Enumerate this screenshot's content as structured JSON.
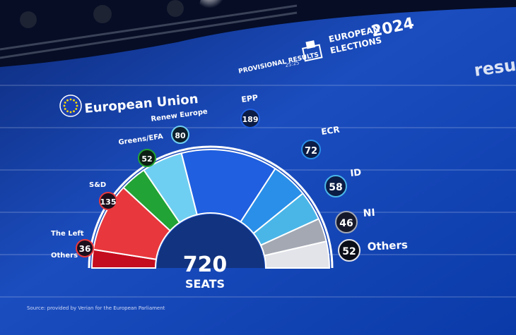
{
  "header": {
    "provisional_label": "PROVISIONAL RESULTS",
    "timestamp": "25:25",
    "election_title_line1": "EUROPEAN",
    "election_title_line2": "ELECTIONS",
    "election_year": "2024",
    "right_edge_text": "resu"
  },
  "region": {
    "name": "European Union"
  },
  "total": {
    "seats": "720",
    "seats_label": "SEATS"
  },
  "source_text": "Source: provided by Verian for the European Parliament",
  "parties": [
    {
      "name": "The Left",
      "seats": "36",
      "color": "#c40d1e"
    },
    {
      "name": "S&D",
      "seats": "135",
      "color": "#e8383d"
    },
    {
      "name": "Greens/EFA",
      "seats": "52",
      "color": "#22a335"
    },
    {
      "name": "Renew Europe",
      "seats": "80",
      "color": "#6fcff2"
    },
    {
      "name": "EPP",
      "seats": "189",
      "color": "#1f5fe0"
    },
    {
      "name": "ECR",
      "seats": "72",
      "color": "#2a8fe8"
    },
    {
      "name": "ID",
      "seats": "58",
      "color": "#4ab6e8"
    },
    {
      "name": "NI",
      "seats": "46",
      "color": "#a3a8b3"
    },
    {
      "name": "Others",
      "seats": "52",
      "color": "#e2e4ea"
    }
  ],
  "others_left_label": "Others",
  "colors": {
    "background_dark": "#0a1f5c",
    "background_mid": "#1a45b8",
    "accent_white": "#ffffff"
  }
}
